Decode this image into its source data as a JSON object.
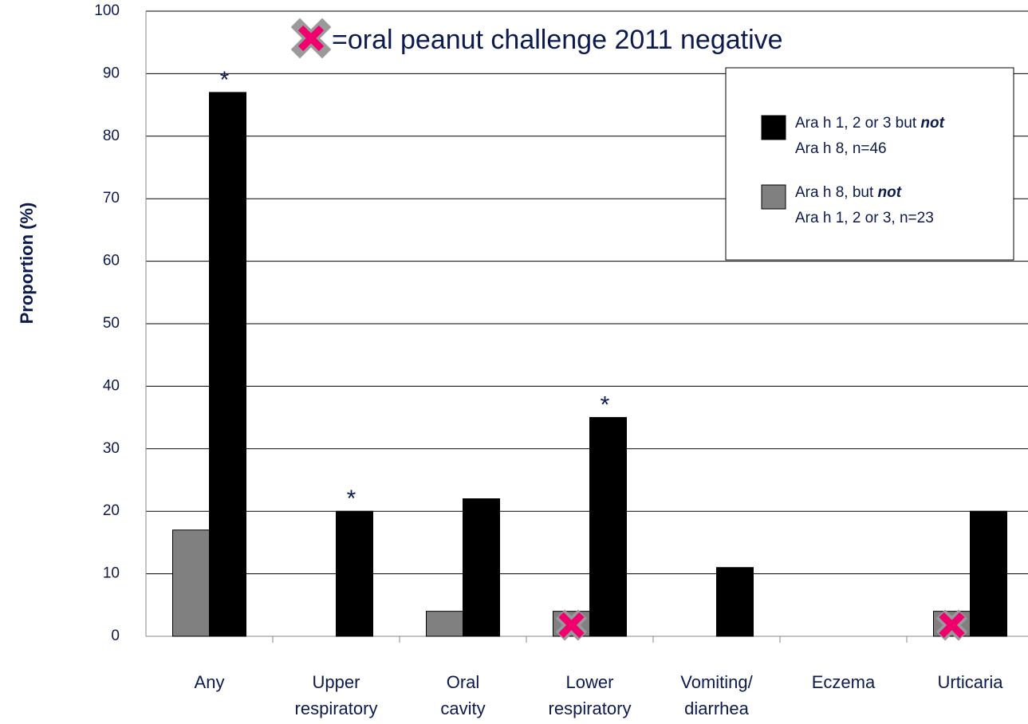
{
  "chart_data": {
    "type": "bar",
    "annotation": "=oral peanut challenge 2011 negative",
    "ylabel": "Proportion (%)",
    "categories": [
      "Any",
      "Upper respiratory",
      "Oral cavity",
      "Lower respiratory",
      "Vomiting/ diarrhea",
      "Eczema",
      "Urticaria"
    ],
    "series": [
      {
        "name": "Ara h 8, but not Ara h 1, 2 or 3, n=23",
        "color": "#808080",
        "values": [
          17,
          0,
          4,
          4,
          0,
          0,
          4
        ]
      },
      {
        "name": "Ara h 1, 2 or 3 but not Ara h 8, n=46",
        "color": "#000000",
        "values": [
          87,
          20,
          22,
          35,
          11,
          0,
          20
        ]
      }
    ],
    "markers": [
      {
        "text": "*",
        "category": "Any"
      },
      {
        "text": "*",
        "category": "Upper respiratory"
      },
      {
        "text": "*",
        "category": "Lower respiratory"
      }
    ],
    "ylim": [
      0,
      100
    ],
    "yticks": [
      0,
      10,
      20,
      30,
      40,
      50,
      60,
      70,
      80,
      90,
      100
    ],
    "grid": true
  }
}
